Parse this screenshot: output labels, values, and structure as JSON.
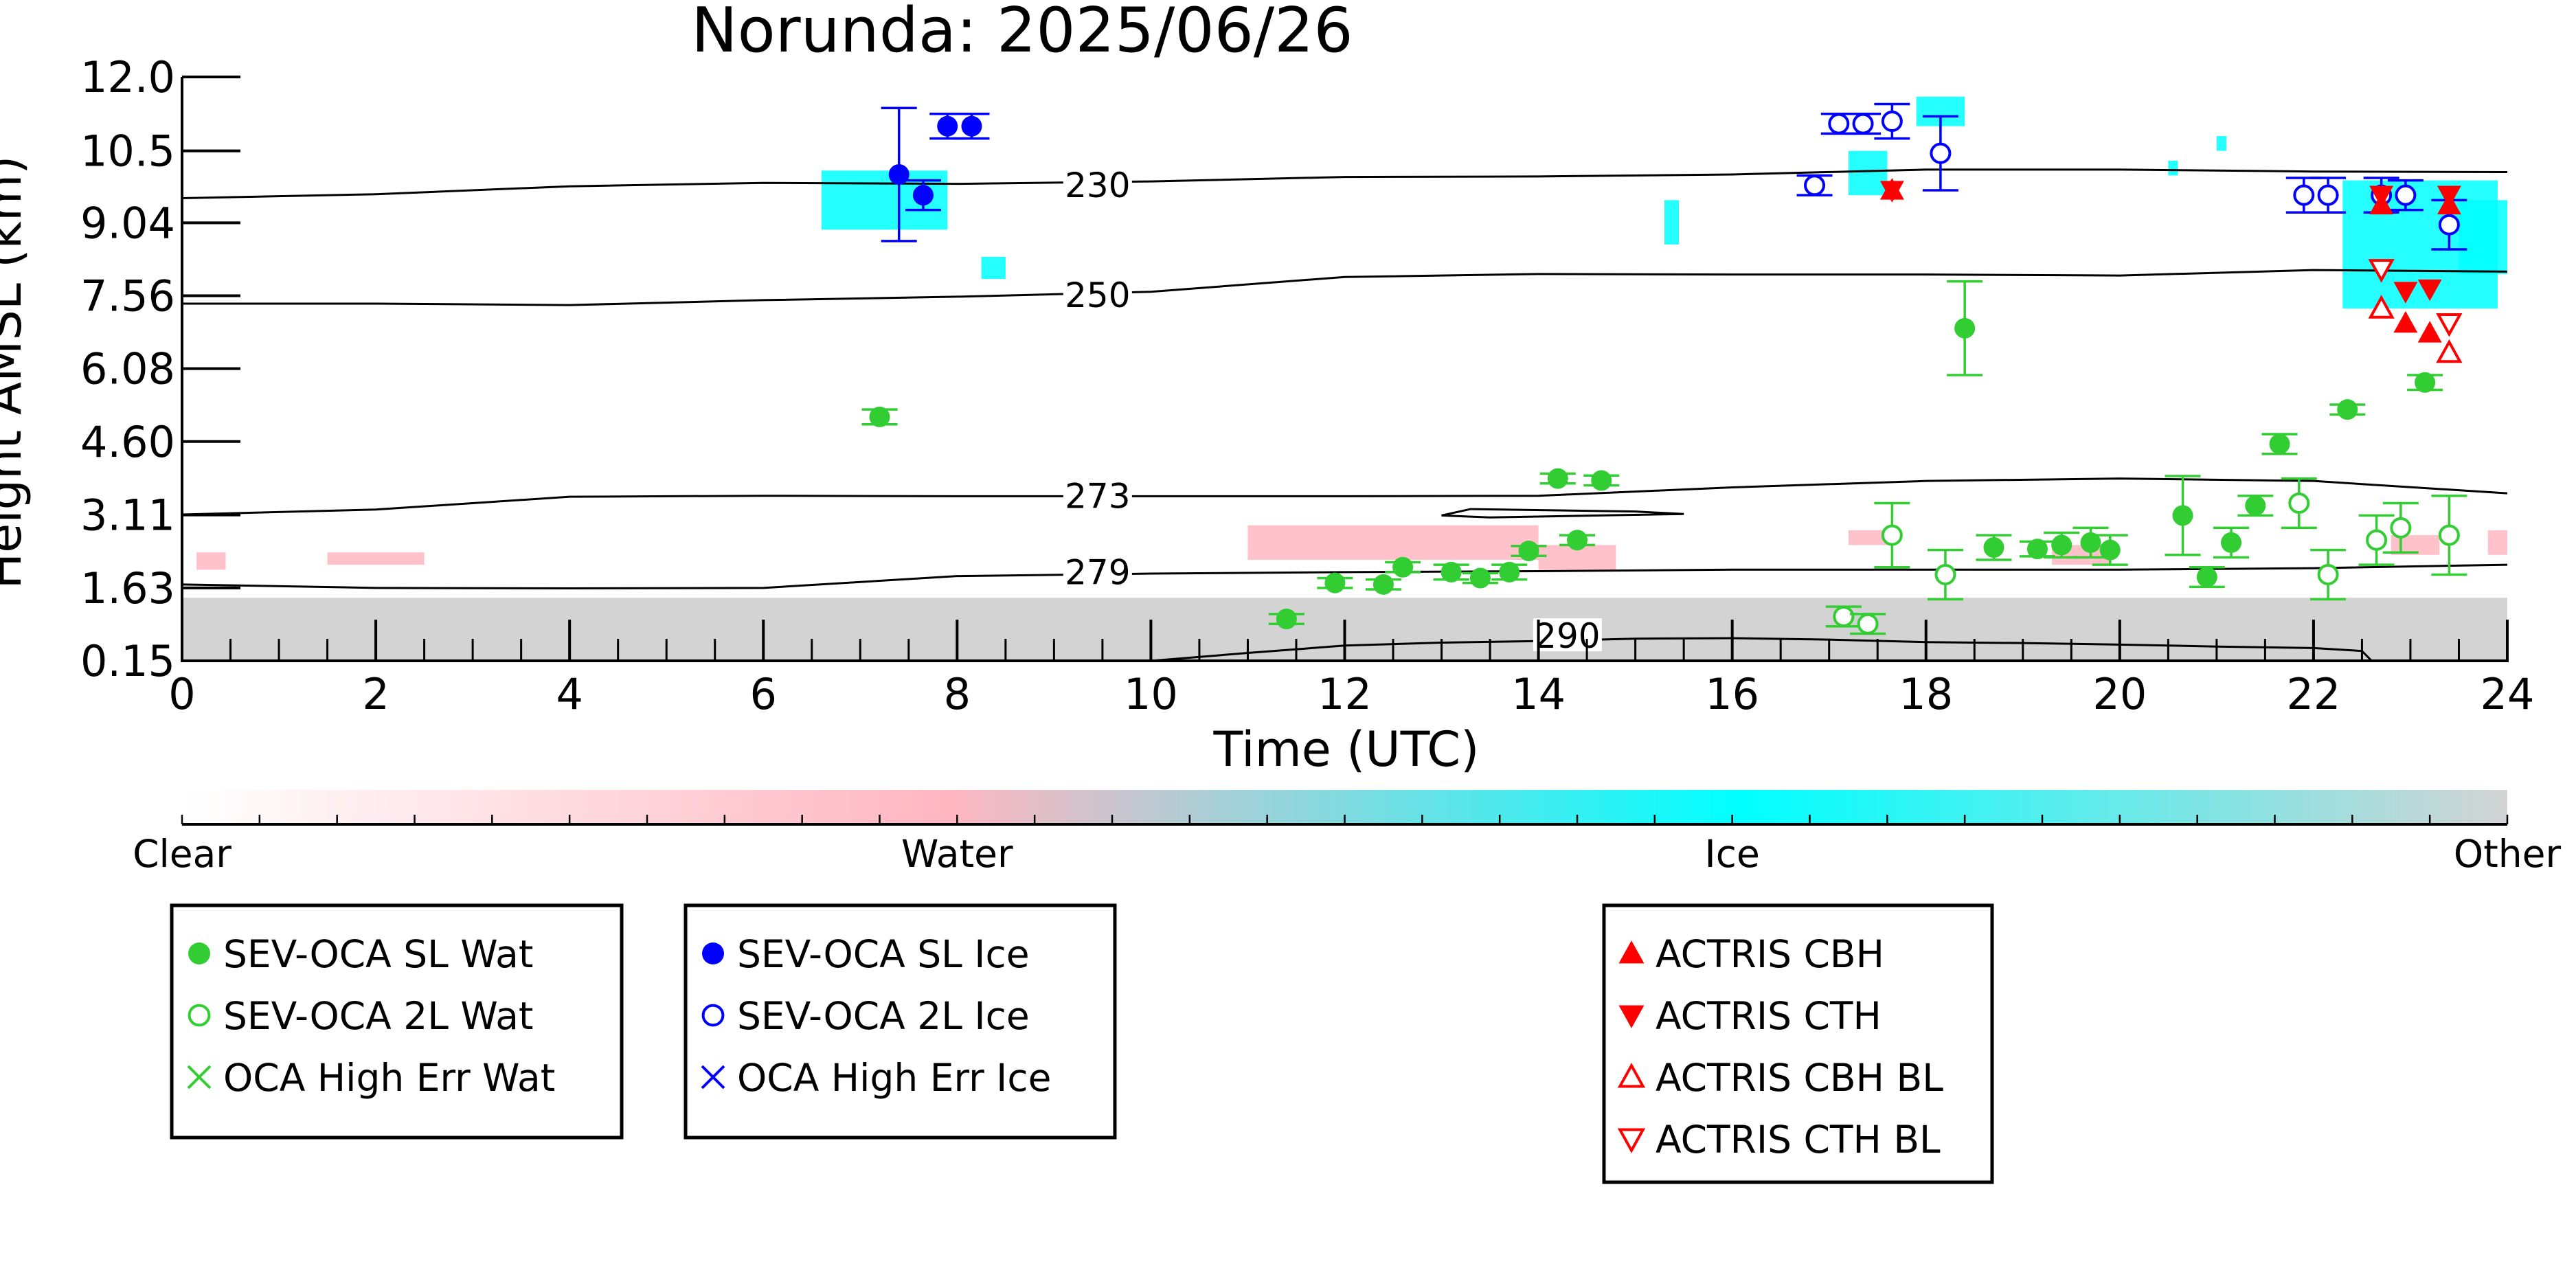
{
  "chart_data": {
    "type": "scatter",
    "title": "Norunda: 2025/06/26",
    "xlabel": "Time (UTC)",
    "ylabel": "Height AMSL (km)",
    "xlim": [
      0,
      24
    ],
    "ylim": [
      0.15,
      12.0
    ],
    "x_ticks": [
      0,
      2,
      4,
      6,
      8,
      10,
      12,
      14,
      16,
      18,
      20,
      22,
      24
    ],
    "y_ticks": [
      0.15,
      1.63,
      3.11,
      4.6,
      6.08,
      7.56,
      9.04,
      10.5,
      12.0
    ],
    "y_tick_labels": [
      "0.15",
      "1.63",
      "3.11",
      "4.60",
      "6.08",
      "7.56",
      "9.04",
      "10.5",
      "12.0"
    ],
    "grid": false,
    "contours": [
      {
        "label": "230",
        "label_at": [
          9.45,
          9.8
        ],
        "points": [
          [
            0,
            9.54
          ],
          [
            2,
            9.62
          ],
          [
            4,
            9.78
          ],
          [
            6,
            9.85
          ],
          [
            8,
            9.83
          ],
          [
            10,
            9.88
          ],
          [
            12,
            9.97
          ],
          [
            14,
            9.98
          ],
          [
            16,
            10.02
          ],
          [
            18,
            10.12
          ],
          [
            20,
            10.12
          ],
          [
            22,
            10.08
          ],
          [
            24,
            10.07
          ]
        ]
      },
      {
        "label": "250",
        "label_at": [
          9.45,
          7.57
        ],
        "points": [
          [
            0,
            7.4
          ],
          [
            2,
            7.4
          ],
          [
            4,
            7.37
          ],
          [
            6,
            7.47
          ],
          [
            8,
            7.54
          ],
          [
            10,
            7.64
          ],
          [
            12,
            7.94
          ],
          [
            14,
            8.0
          ],
          [
            16,
            7.99
          ],
          [
            18,
            7.99
          ],
          [
            20,
            7.97
          ],
          [
            22,
            8.08
          ],
          [
            24,
            8.05
          ]
        ]
      },
      {
        "label": "273",
        "label_at": [
          9.45,
          3.49
        ],
        "points": [
          [
            0,
            3.12
          ],
          [
            2,
            3.22
          ],
          [
            4,
            3.48
          ],
          [
            6,
            3.5
          ],
          [
            8,
            3.49
          ],
          [
            10,
            3.49
          ],
          [
            12,
            3.49
          ],
          [
            14,
            3.5
          ],
          [
            16,
            3.67
          ],
          [
            18,
            3.8
          ],
          [
            20,
            3.85
          ],
          [
            22,
            3.8
          ],
          [
            24,
            3.55
          ]
        ]
      },
      {
        "label": "279",
        "label_at": [
          9.45,
          1.94
        ],
        "points": [
          [
            0,
            1.7
          ],
          [
            2,
            1.63
          ],
          [
            4,
            1.62
          ],
          [
            6,
            1.63
          ],
          [
            8,
            1.87
          ],
          [
            10,
            1.92
          ],
          [
            12,
            1.95
          ],
          [
            14,
            1.97
          ],
          [
            16,
            2.0
          ],
          [
            18,
            2.0
          ],
          [
            20,
            2.0
          ],
          [
            22,
            2.03
          ],
          [
            24,
            2.1
          ]
        ]
      },
      {
        "label": "290",
        "label_at": [
          14.3,
          0.65
        ],
        "points": [
          [
            10,
            0.15
          ],
          [
            11,
            0.31
          ],
          [
            12,
            0.46
          ],
          [
            13,
            0.52
          ],
          [
            14,
            0.55
          ],
          [
            15,
            0.6
          ],
          [
            16,
            0.61
          ],
          [
            17,
            0.58
          ],
          [
            18,
            0.53
          ],
          [
            19,
            0.51
          ],
          [
            20,
            0.48
          ],
          [
            21,
            0.44
          ],
          [
            22,
            0.41
          ],
          [
            22.5,
            0.35
          ],
          [
            22.6,
            0.15
          ]
        ]
      }
    ],
    "contour_closed": [
      [
        13.0,
        3.1
      ],
      [
        13.3,
        3.23
      ],
      [
        15.0,
        3.18
      ],
      [
        15.5,
        3.13
      ],
      [
        13.5,
        3.06
      ],
      [
        13.0,
        3.1
      ]
    ],
    "series": [
      {
        "name": "SEV-OCA SL Wat",
        "marker": "filled-circle",
        "color": "#32cd32",
        "points": [
          [
            7.2,
            5.1,
            0.15
          ],
          [
            11.4,
            1.0,
            0.1
          ],
          [
            11.9,
            1.73,
            0.1
          ],
          [
            12.4,
            1.7,
            0.1
          ],
          [
            12.6,
            2.05,
            0.1
          ],
          [
            13.1,
            1.95,
            0.15
          ],
          [
            13.4,
            1.83,
            0.1
          ],
          [
            13.7,
            1.95,
            0.15
          ],
          [
            13.9,
            2.38,
            0.1
          ],
          [
            14.2,
            3.85,
            0.1
          ],
          [
            14.4,
            2.6,
            0.1
          ],
          [
            14.65,
            3.81,
            0.1
          ],
          [
            18.4,
            6.9,
            0.95
          ],
          [
            18.7,
            2.45,
            0.25
          ],
          [
            19.15,
            2.42,
            0.15
          ],
          [
            19.4,
            2.5,
            0.25
          ],
          [
            19.7,
            2.55,
            0.3
          ],
          [
            19.9,
            2.4,
            0.3
          ],
          [
            20.65,
            3.1,
            0.8
          ],
          [
            20.9,
            1.85,
            0.2
          ],
          [
            21.15,
            2.55,
            0.3
          ],
          [
            21.4,
            3.3,
            0.2
          ],
          [
            21.65,
            4.55,
            0.2
          ],
          [
            22.35,
            5.25,
            0.1
          ],
          [
            23.15,
            5.8,
            0.15
          ]
        ]
      },
      {
        "name": "SEV-OCA 2L Wat",
        "marker": "open-circle",
        "color": "#32cd32",
        "points": [
          [
            17.15,
            1.05,
            0.2
          ],
          [
            17.4,
            0.9,
            0.2
          ],
          [
            17.65,
            2.7,
            0.65
          ],
          [
            18.2,
            1.9,
            0.5
          ],
          [
            21.85,
            3.35,
            0.5
          ],
          [
            22.15,
            1.9,
            0.5
          ],
          [
            22.65,
            2.6,
            0.5
          ],
          [
            22.9,
            2.85,
            0.5
          ],
          [
            23.4,
            2.7,
            0.8
          ]
        ]
      },
      {
        "name": "SEV-OCA SL Ice",
        "marker": "filled-circle",
        "color": "#0000ff",
        "points": [
          [
            7.4,
            10.02,
            1.35
          ],
          [
            7.65,
            9.6,
            0.3
          ],
          [
            7.9,
            11.0,
            0.25
          ],
          [
            8.15,
            11.0,
            0.25
          ]
        ]
      },
      {
        "name": "SEV-OCA 2L Ice",
        "marker": "open-circle",
        "color": "#0000ff",
        "points": [
          [
            16.85,
            9.8,
            0.2
          ],
          [
            17.1,
            11.05,
            0.2
          ],
          [
            17.35,
            11.05,
            0.2
          ],
          [
            17.65,
            11.1,
            0.35
          ],
          [
            18.15,
            10.45,
            0.75
          ],
          [
            21.9,
            9.6,
            0.35
          ],
          [
            22.15,
            9.6,
            0.35
          ],
          [
            22.7,
            9.6,
            0.35
          ],
          [
            22.95,
            9.6,
            0.3
          ],
          [
            23.4,
            9.0,
            0.5
          ]
        ]
      },
      {
        "name": "OCA High Err Wat",
        "marker": "x",
        "color": "#32cd32",
        "points": []
      },
      {
        "name": "OCA High Err Ice",
        "marker": "x",
        "color": "#0000ff",
        "points": []
      },
      {
        "name": "ACTRIS CBH",
        "marker": "triangle-up-filled",
        "color": "#ff0000",
        "points": [
          [
            17.65,
            9.7
          ],
          [
            22.7,
            9.4
          ],
          [
            22.95,
            7.0
          ],
          [
            23.2,
            6.8
          ],
          [
            23.4,
            9.4
          ]
        ]
      },
      {
        "name": "ACTRIS CTH",
        "marker": "triangle-down-filled",
        "color": "#ff0000",
        "points": [
          [
            17.65,
            9.7
          ],
          [
            22.7,
            9.6
          ],
          [
            22.95,
            7.65
          ],
          [
            23.2,
            7.7
          ],
          [
            23.4,
            9.6
          ]
        ]
      },
      {
        "name": "ACTRIS CBH BL",
        "marker": "triangle-up-open",
        "color": "#ff0000",
        "points": [
          [
            22.7,
            7.3
          ],
          [
            23.4,
            6.4
          ]
        ]
      },
      {
        "name": "ACTRIS CTH BL",
        "marker": "triangle-down-open",
        "color": "#ff0000",
        "points": [
          [
            22.7,
            8.1
          ],
          [
            23.4,
            7.0
          ]
        ]
      }
    ],
    "classification_regions": [
      {
        "class": "Other",
        "color": "#d3d3d3",
        "rects": [
          [
            0,
            0.15,
            24,
            1.43
          ]
        ]
      },
      {
        "class": "Water",
        "color": "#ffb6c1",
        "rects": [
          [
            0.15,
            2.0,
            0.45,
            2.35
          ],
          [
            1.5,
            2.1,
            2.5,
            2.35
          ],
          [
            11.0,
            2.2,
            14.0,
            2.9
          ],
          [
            14.0,
            2.0,
            14.8,
            2.5
          ],
          [
            17.2,
            2.5,
            17.6,
            2.8
          ],
          [
            19.3,
            2.1,
            19.9,
            2.5
          ],
          [
            23.8,
            2.3,
            24,
            2.8
          ],
          [
            22.8,
            2.3,
            23.3,
            2.7
          ]
        ]
      },
      {
        "class": "Ice",
        "color": "#00ffff",
        "rects": [
          [
            6.6,
            8.9,
            7.9,
            10.1
          ],
          [
            8.25,
            7.9,
            8.5,
            8.35
          ],
          [
            17.2,
            9.6,
            17.6,
            10.5
          ],
          [
            17.9,
            11.0,
            18.4,
            11.6
          ],
          [
            15.3,
            8.6,
            15.45,
            9.5
          ],
          [
            22.3,
            7.3,
            23.9,
            9.9
          ],
          [
            23.5,
            8.0,
            24,
            9.5
          ],
          [
            20.5,
            10.0,
            20.6,
            10.3
          ],
          [
            21.0,
            10.5,
            21.1,
            10.8
          ]
        ]
      }
    ],
    "colorbar": {
      "labels": [
        "Clear",
        "Water",
        "Ice",
        "Other"
      ],
      "colors": [
        "#ffffff",
        "#ffb6c1",
        "#00ffff",
        "#d3d3d3"
      ]
    },
    "legend_placement": "bottom"
  },
  "legends": [
    {
      "items": [
        {
          "label": "SEV-OCA SL Wat",
          "marker": "filled-circle",
          "color": "#32cd32"
        },
        {
          "label": "SEV-OCA 2L Wat",
          "marker": "open-circle",
          "color": "#32cd32"
        },
        {
          "label": "OCA High Err Wat",
          "marker": "x",
          "color": "#32cd32"
        }
      ]
    },
    {
      "items": [
        {
          "label": "SEV-OCA SL Ice",
          "marker": "filled-circle",
          "color": "#0000ff"
        },
        {
          "label": "SEV-OCA 2L Ice",
          "marker": "open-circle",
          "color": "#0000ff"
        },
        {
          "label": "OCA High Err Ice",
          "marker": "x",
          "color": "#0000ff"
        }
      ]
    },
    {
      "items": [
        {
          "label": "ACTRIS CBH",
          "marker": "triangle-up-filled",
          "color": "#ff0000"
        },
        {
          "label": "ACTRIS CTH",
          "marker": "triangle-down-filled",
          "color": "#ff0000"
        },
        {
          "label": "ACTRIS CBH BL",
          "marker": "triangle-up-open",
          "color": "#ff0000"
        },
        {
          "label": "ACTRIS CTH BL",
          "marker": "triangle-down-open",
          "color": "#ff0000"
        }
      ]
    }
  ]
}
